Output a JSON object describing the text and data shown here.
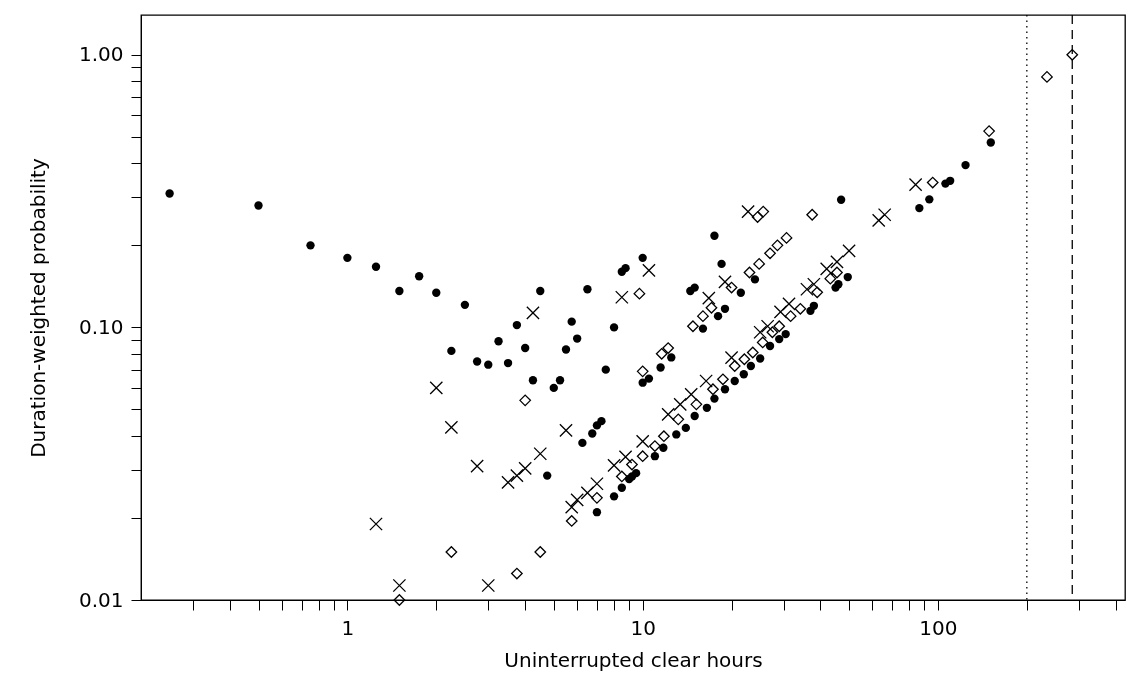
{
  "chart_data": {
    "type": "scatter",
    "xlabel": "Uninterrupted clear hours",
    "ylabel": "Duration-weighted probability",
    "log": "xy",
    "grid": false,
    "xlim": [
      0.2,
      430
    ],
    "ylim": [
      0.01,
      1.4
    ],
    "xticks": [
      {
        "value": 0.3,
        "label": null
      },
      {
        "value": 0.4,
        "label": null
      },
      {
        "value": 0.5,
        "label": null
      },
      {
        "value": 0.6,
        "label": null
      },
      {
        "value": 0.7,
        "label": null
      },
      {
        "value": 0.8,
        "label": null
      },
      {
        "value": 0.9,
        "label": null
      },
      1,
      {
        "value": 2,
        "label": null
      },
      {
        "value": 3,
        "label": null
      },
      {
        "value": 4,
        "label": null
      },
      {
        "value": 5,
        "label": null
      },
      {
        "value": 6,
        "label": null
      },
      {
        "value": 7,
        "label": null
      },
      {
        "value": 8,
        "label": null
      },
      {
        "value": 9,
        "label": null
      },
      10,
      {
        "value": 20,
        "label": null
      },
      {
        "value": 30,
        "label": null
      },
      {
        "value": 40,
        "label": null
      },
      {
        "value": 50,
        "label": null
      },
      {
        "value": 60,
        "label": null
      },
      {
        "value": 70,
        "label": null
      },
      {
        "value": 80,
        "label": null
      },
      {
        "value": 90,
        "label": null
      },
      100,
      {
        "value": 200,
        "label": null
      },
      {
        "value": 300,
        "label": null
      },
      {
        "value": 400,
        "label": null
      }
    ],
    "yticks": [
      0.01,
      {
        "value": 0.02,
        "label": null
      },
      {
        "value": 0.03,
        "label": null
      },
      {
        "value": 0.04,
        "label": null
      },
      {
        "value": 0.05,
        "label": null
      },
      {
        "value": 0.06,
        "label": null
      },
      {
        "value": 0.07,
        "label": null
      },
      {
        "value": 0.08,
        "label": null
      },
      {
        "value": 0.09,
        "label": null
      },
      {
        "value": 0.1,
        "label": "0.10"
      },
      {
        "value": 0.2,
        "label": null
      },
      {
        "value": 0.3,
        "label": null
      },
      {
        "value": 0.4,
        "label": null
      },
      {
        "value": 0.5,
        "label": null
      },
      {
        "value": 0.6,
        "label": null
      },
      {
        "value": 0.7,
        "label": null
      },
      {
        "value": 0.8,
        "label": null
      },
      {
        "value": 0.9,
        "label": null
      },
      {
        "value": 1,
        "label": "1.00"
      }
    ],
    "ref_lines": [
      {
        "axis": "x",
        "value": 200,
        "color": "#000000",
        "line_style": "dotted"
      },
      {
        "axis": "x",
        "value": 285,
        "color": "#000000",
        "line_style": "dashed"
      }
    ],
    "series": [
      {
        "color": "#000000",
        "marker": "circle",
        "x": [
          0.25,
          0.5,
          0.75,
          1.0,
          1.25,
          1.5,
          1.75,
          2.0,
          2.5,
          2.25,
          2.75,
          3.0,
          3.25,
          3.5,
          3.75,
          4.0,
          4.25,
          4.5,
          5.0,
          5.25,
          5.5,
          5.75,
          6.0,
          6.5,
          7.5,
          8.0,
          8.5,
          8.75,
          10,
          4.75,
          6.25,
          6.75,
          7.0,
          7.25,
          7.0,
          8.0,
          8.5,
          9.0,
          9.2,
          9.5,
          10,
          10.5,
          11.5,
          12.5,
          11,
          11.75,
          13,
          14,
          15,
          16.5,
          17.5,
          19,
          20.5,
          22,
          23.25,
          25,
          27,
          29,
          30.5,
          37,
          38,
          45,
          46,
          49.5,
          14.5,
          15,
          16,
          17.5,
          18.5,
          18,
          19,
          21.5,
          24,
          47,
          86.5,
          93.5,
          106,
          110,
          124,
          151
        ],
        "values": [
          0.31,
          0.28,
          0.2,
          0.18,
          0.167,
          0.136,
          0.154,
          0.134,
          0.121,
          0.082,
          0.075,
          0.073,
          0.089,
          0.074,
          0.102,
          0.084,
          0.064,
          0.136,
          0.06,
          0.064,
          0.083,
          0.105,
          0.091,
          0.138,
          0.07,
          0.1,
          0.16,
          0.165,
          0.18,
          0.0286,
          0.0377,
          0.0408,
          0.0437,
          0.0453,
          0.021,
          0.024,
          0.0258,
          0.0278,
          0.0284,
          0.0292,
          0.0627,
          0.0649,
          0.0713,
          0.0776,
          0.0337,
          0.0362,
          0.0405,
          0.0428,
          0.0473,
          0.0507,
          0.0548,
          0.0593,
          0.0636,
          0.0673,
          0.0722,
          0.0769,
          0.0855,
          0.0906,
          0.0945,
          0.115,
          0.12,
          0.14,
          0.144,
          0.153,
          0.136,
          0.14,
          0.099,
          0.217,
          0.171,
          0.11,
          0.117,
          0.134,
          0.15,
          0.294,
          0.274,
          0.295,
          0.337,
          0.345,
          0.394,
          0.477
        ]
      },
      {
        "color": "#000000",
        "marker": "cross",
        "x": [
          4.25,
          8.5,
          2.0,
          2.25,
          2.75,
          3.5,
          3.75,
          4.0,
          4.5,
          5.5,
          1.25,
          1.5,
          3.0,
          5.75,
          6.0,
          6.5,
          7.0,
          8.0,
          8.75,
          10.5,
          22.75,
          16.75,
          19,
          63,
          66,
          10,
          12.2,
          13.4,
          14.6,
          16.4,
          20,
          25,
          26.5,
          29.3,
          31.3,
          36,
          38,
          42,
          45.5,
          50,
          84
        ],
        "values": [
          0.113,
          0.129,
          0.06,
          0.043,
          0.031,
          0.027,
          0.0286,
          0.0304,
          0.0344,
          0.0419,
          0.019,
          0.0113,
          0.0113,
          0.0219,
          0.0233,
          0.0247,
          0.0267,
          0.0312,
          0.0335,
          0.162,
          0.266,
          0.128,
          0.147,
          0.247,
          0.259,
          0.0382,
          0.048,
          0.0522,
          0.0568,
          0.0636,
          0.0775,
          0.096,
          0.101,
          0.114,
          0.122,
          0.138,
          0.144,
          0.164,
          0.174,
          0.191,
          0.334
        ]
      },
      {
        "color": "#000000",
        "marker": "diamond",
        "x": [
          4.0,
          2.25,
          4.5,
          3.75,
          1.5,
          5.75,
          7.0,
          8.5,
          9.75,
          24.5,
          25.6,
          37.5,
          27,
          28.6,
          30.7,
          23,
          24.8,
          20,
          17.1,
          16,
          14.8,
          10,
          11.6,
          12.2,
          9.2,
          10,
          11,
          11.8,
          13.2,
          15.2,
          17.3,
          18.7,
          20.5,
          22.1,
          23.6,
          25.5,
          27.5,
          29,
          31.7,
          34.2,
          39,
          43.2,
          45.5,
          96,
          149,
          234,
          285
        ],
        "values": [
          0.054,
          0.015,
          0.015,
          0.0125,
          0.01,
          0.0195,
          0.0237,
          0.0284,
          0.133,
          0.254,
          0.266,
          0.259,
          0.187,
          0.2,
          0.213,
          0.159,
          0.171,
          0.14,
          0.118,
          0.11,
          0.101,
          0.069,
          0.08,
          0.084,
          0.0314,
          0.0337,
          0.0367,
          0.0399,
          0.046,
          0.0522,
          0.0593,
          0.0645,
          0.0722,
          0.0764,
          0.0809,
          0.0881,
          0.096,
          0.101,
          0.11,
          0.117,
          0.1345,
          0.151,
          0.159,
          0.34,
          0.525,
          0.83,
          1.0
        ]
      }
    ]
  }
}
